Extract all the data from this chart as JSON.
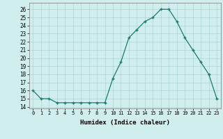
{
  "x": [
    0,
    1,
    2,
    3,
    4,
    5,
    6,
    7,
    8,
    9,
    10,
    11,
    12,
    13,
    14,
    15,
    16,
    17,
    18,
    19,
    20,
    21,
    22,
    23
  ],
  "y": [
    16,
    15,
    15,
    14.5,
    14.5,
    14.5,
    14.5,
    14.5,
    14.5,
    14.5,
    17.5,
    19.5,
    22.5,
    23.5,
    24.5,
    25,
    26,
    26,
    24.5,
    22.5,
    21,
    19.5,
    18,
    15
  ],
  "line_color": "#1a7a6e",
  "marker": "+",
  "bg_color": "#d0eeee",
  "grid_color": "#b0d8d8",
  "xlabel": "Humidex (Indice chaleur)",
  "ylabel_ticks": [
    14,
    15,
    16,
    17,
    18,
    19,
    20,
    21,
    22,
    23,
    24,
    25,
    26
  ],
  "xlim": [
    -0.5,
    23.5
  ],
  "ylim": [
    13.8,
    26.8
  ],
  "figsize": [
    3.2,
    2.0
  ],
  "dpi": 100
}
